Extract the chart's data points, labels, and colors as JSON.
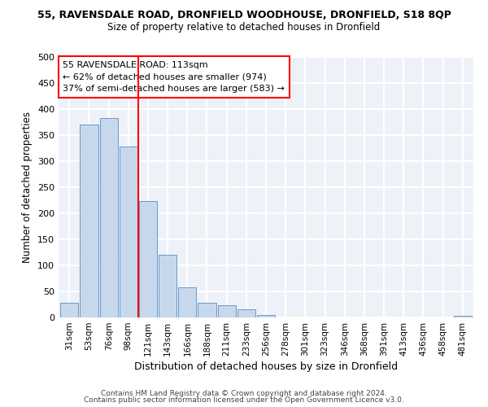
{
  "title_main": "55, RAVENSDALE ROAD, DRONFIELD WOODHOUSE, DRONFIELD, S18 8QP",
  "title_sub": "Size of property relative to detached houses in Dronfield",
  "xlabel": "Distribution of detached houses by size in Dronfield",
  "ylabel": "Number of detached properties",
  "bar_labels": [
    "31sqm",
    "53sqm",
    "76sqm",
    "98sqm",
    "121sqm",
    "143sqm",
    "166sqm",
    "188sqm",
    "211sqm",
    "233sqm",
    "256sqm",
    "278sqm",
    "301sqm",
    "323sqm",
    "346sqm",
    "368sqm",
    "391sqm",
    "413sqm",
    "436sqm",
    "458sqm",
    "481sqm"
  ],
  "bar_values": [
    28,
    370,
    383,
    328,
    224,
    121,
    58,
    28,
    23,
    16,
    5,
    0,
    0,
    0,
    0,
    0,
    0,
    0,
    0,
    0,
    3
  ],
  "bar_color": "#c8d8ec",
  "bar_edgecolor": "#6699cc",
  "ylim": [
    0,
    500
  ],
  "yticks": [
    0,
    50,
    100,
    150,
    200,
    250,
    300,
    350,
    400,
    450,
    500
  ],
  "vline_color": "red",
  "vline_index": 4,
  "annotation_text_line1": "55 RAVENSDALE ROAD: 113sqm",
  "annotation_text_line2": "← 62% of detached houses are smaller (974)",
  "annotation_text_line3": "37% of semi-detached houses are larger (583) →",
  "annotation_box_edgecolor": "red",
  "annotation_box_facecolor": "white",
  "footer_line1": "Contains HM Land Registry data © Crown copyright and database right 2024.",
  "footer_line2": "Contains public sector information licensed under the Open Government Licence v3.0.",
  "background_color": "#eef2f8",
  "grid_color": "white",
  "fig_facecolor": "white"
}
